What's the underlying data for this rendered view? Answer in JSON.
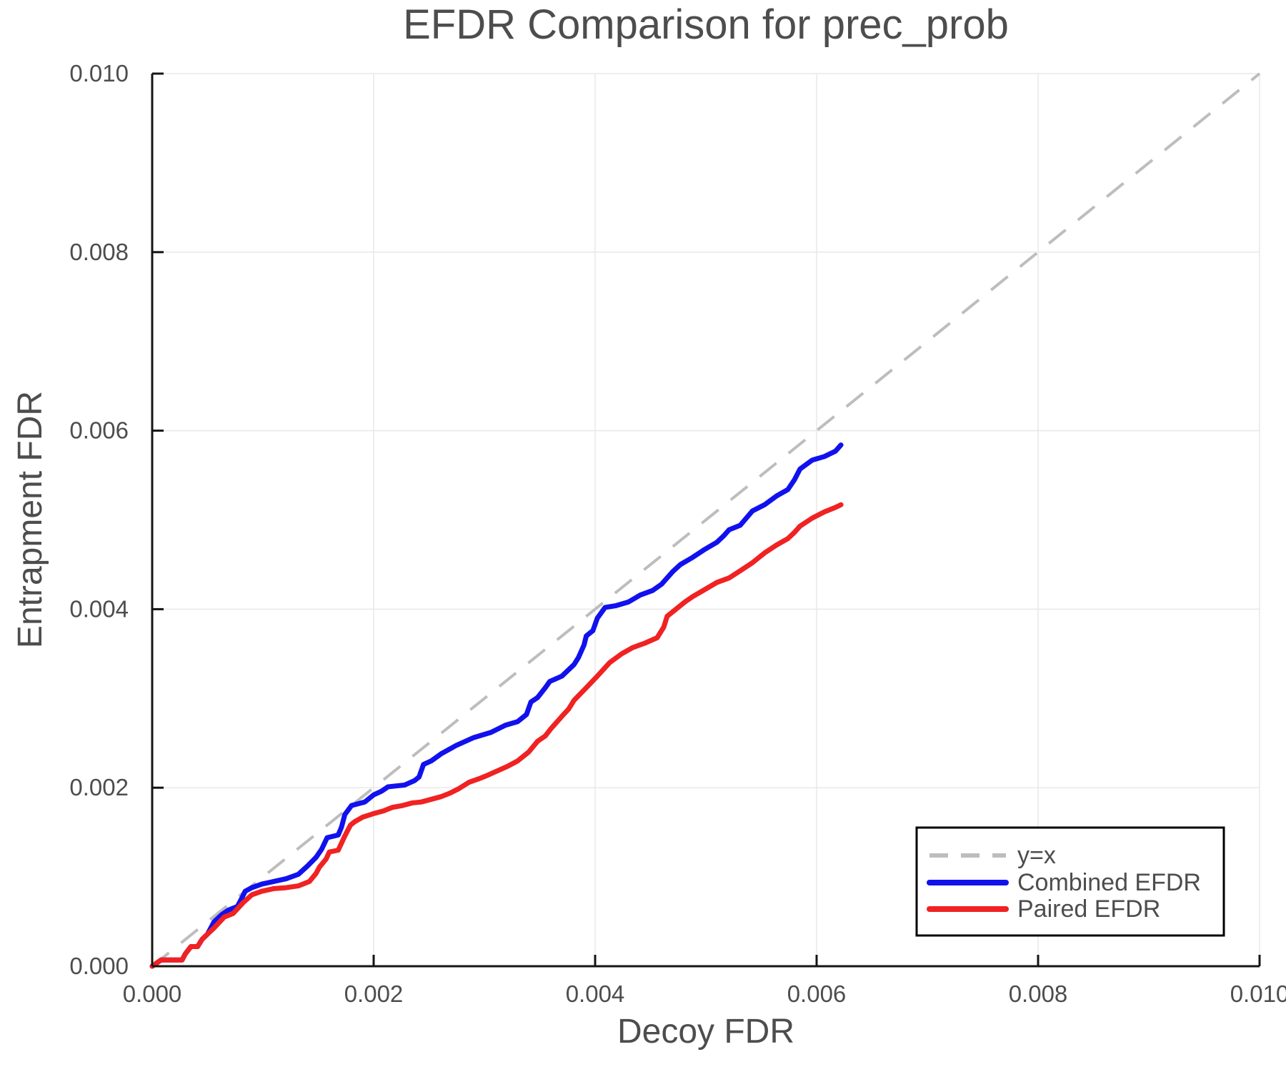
{
  "figure": {
    "title": "EFDR Comparison for prec_prob",
    "xlabel": "Decoy FDR",
    "ylabel": "Entrapment FDR"
  },
  "legend": {
    "position": "lower right",
    "items": [
      {
        "label": "y=x",
        "color": "#bdbdbd",
        "dashed": true
      },
      {
        "label": "Combined EFDR",
        "color": "#1111ee",
        "dashed": false
      },
      {
        "label": "Paired EFDR",
        "color": "#f02222",
        "dashed": false
      }
    ]
  },
  "colors": {
    "text": "#4d4d4d",
    "grid": "#e8e8e8",
    "spine": "#141414",
    "reference": "#bdbdbd",
    "combined": "#1111ee",
    "paired": "#f02222",
    "background": "#ffffff"
  },
  "chart_data": {
    "type": "line",
    "title": "EFDR Comparison for prec_prob",
    "xlabel": "Decoy FDR",
    "ylabel": "Entrapment FDR",
    "xlim": [
      0,
      0.01
    ],
    "ylim": [
      0,
      0.01
    ],
    "x_tick_values": [
      0,
      0.002,
      0.004,
      0.006,
      0.008,
      0.01
    ],
    "x_tick_labels": [
      "0.000",
      "0.002",
      "0.004",
      "0.006",
      "0.008",
      "0.010"
    ],
    "y_tick_values": [
      0,
      0.002,
      0.004,
      0.006,
      0.008,
      0.01
    ],
    "y_tick_labels": [
      "0.000",
      "0.002",
      "0.004",
      "0.006",
      "0.008",
      "0.010"
    ],
    "grid": true,
    "legend_position": "lower right",
    "reference_line": {
      "label": "y=x",
      "from": [
        0,
        0
      ],
      "to": [
        0.01,
        0.01
      ],
      "style": "dashed",
      "color": "#bdbdbd"
    },
    "series": [
      {
        "name": "Combined EFDR",
        "color": "#1111ee",
        "points": [
          [
            0.0,
            0.0
          ],
          [
            8e-05,
            7e-05
          ],
          [
            0.00027,
            7e-05
          ],
          [
            0.0003,
            0.00014
          ],
          [
            0.00035,
            0.00022
          ],
          [
            0.00041,
            0.00022
          ],
          [
            0.00045,
            0.0003
          ],
          [
            0.0005,
            0.00036
          ],
          [
            0.00056,
            0.0005
          ],
          [
            0.00063,
            0.00058
          ],
          [
            0.00069,
            0.00063
          ],
          [
            0.00077,
            0.00067
          ],
          [
            0.0008,
            0.00074
          ],
          [
            0.00084,
            0.00084
          ],
          [
            0.0009,
            0.00088
          ],
          [
            0.00099,
            0.00092
          ],
          [
            0.0011,
            0.00095
          ],
          [
            0.00121,
            0.00098
          ],
          [
            0.00132,
            0.00103
          ],
          [
            0.0014,
            0.00112
          ],
          [
            0.00148,
            0.00122
          ],
          [
            0.00153,
            0.00131
          ],
          [
            0.00158,
            0.00144
          ],
          [
            0.00168,
            0.00147
          ],
          [
            0.00171,
            0.00156
          ],
          [
            0.00174,
            0.0017
          ],
          [
            0.0018,
            0.0018
          ],
          [
            0.00192,
            0.00184
          ],
          [
            0.002,
            0.00192
          ],
          [
            0.00207,
            0.00196
          ],
          [
            0.00213,
            0.00201
          ],
          [
            0.00228,
            0.00203
          ],
          [
            0.00237,
            0.00208
          ],
          [
            0.00241,
            0.00212
          ],
          [
            0.00245,
            0.00226
          ],
          [
            0.00252,
            0.0023
          ],
          [
            0.00261,
            0.00238
          ],
          [
            0.00274,
            0.00247
          ],
          [
            0.0029,
            0.00256
          ],
          [
            0.00306,
            0.00262
          ],
          [
            0.00319,
            0.0027
          ],
          [
            0.0033,
            0.00274
          ],
          [
            0.00338,
            0.00282
          ],
          [
            0.00342,
            0.00296
          ],
          [
            0.00348,
            0.00301
          ],
          [
            0.00355,
            0.00312
          ],
          [
            0.00359,
            0.00319
          ],
          [
            0.0037,
            0.00325
          ],
          [
            0.00381,
            0.00338
          ],
          [
            0.00385,
            0.00346
          ],
          [
            0.0039,
            0.0036
          ],
          [
            0.00392,
            0.0037
          ],
          [
            0.00398,
            0.00376
          ],
          [
            0.00402,
            0.0039
          ],
          [
            0.00409,
            0.00402
          ],
          [
            0.00419,
            0.00404
          ],
          [
            0.0043,
            0.00408
          ],
          [
            0.00441,
            0.00416
          ],
          [
            0.00452,
            0.00421
          ],
          [
            0.0046,
            0.00428
          ],
          [
            0.0047,
            0.00442
          ],
          [
            0.00477,
            0.0045
          ],
          [
            0.00488,
            0.00458
          ],
          [
            0.00499,
            0.00467
          ],
          [
            0.0051,
            0.00475
          ],
          [
            0.00516,
            0.00482
          ],
          [
            0.00521,
            0.00489
          ],
          [
            0.00531,
            0.00494
          ],
          [
            0.00542,
            0.0051
          ],
          [
            0.00553,
            0.00517
          ],
          [
            0.00564,
            0.00527
          ],
          [
            0.00574,
            0.00534
          ],
          [
            0.0058,
            0.00545
          ],
          [
            0.00585,
            0.00557
          ],
          [
            0.00596,
            0.00567
          ],
          [
            0.00607,
            0.00571
          ],
          [
            0.00617,
            0.00577
          ],
          [
            0.00622,
            0.00584
          ]
        ]
      },
      {
        "name": "Paired EFDR",
        "color": "#f02222",
        "points": [
          [
            0.0,
            0.0
          ],
          [
            8e-05,
            7e-05
          ],
          [
            0.00027,
            7e-05
          ],
          [
            0.0003,
            0.00014
          ],
          [
            0.00035,
            0.00022
          ],
          [
            0.00041,
            0.00022
          ],
          [
            0.00045,
            0.0003
          ],
          [
            0.0005,
            0.00036
          ],
          [
            0.00056,
            0.00043
          ],
          [
            0.00065,
            0.00055
          ],
          [
            0.00073,
            0.00059
          ],
          [
            0.00082,
            0.00071
          ],
          [
            0.0009,
            0.0008
          ],
          [
            0.00099,
            0.00084
          ],
          [
            0.0011,
            0.00087
          ],
          [
            0.00121,
            0.00088
          ],
          [
            0.00132,
            0.0009
          ],
          [
            0.00142,
            0.00095
          ],
          [
            0.00148,
            0.00104
          ],
          [
            0.00151,
            0.00111
          ],
          [
            0.00157,
            0.0012
          ],
          [
            0.0016,
            0.00128
          ],
          [
            0.00168,
            0.0013
          ],
          [
            0.00171,
            0.00138
          ],
          [
            0.00174,
            0.00146
          ],
          [
            0.00179,
            0.00158
          ],
          [
            0.00183,
            0.00162
          ],
          [
            0.0019,
            0.00167
          ],
          [
            0.002,
            0.00171
          ],
          [
            0.00209,
            0.00174
          ],
          [
            0.00217,
            0.00178
          ],
          [
            0.00226,
            0.0018
          ],
          [
            0.00235,
            0.00183
          ],
          [
            0.00243,
            0.00184
          ],
          [
            0.00252,
            0.00187
          ],
          [
            0.00261,
            0.0019
          ],
          [
            0.00269,
            0.00194
          ],
          [
            0.00277,
            0.00199
          ],
          [
            0.00286,
            0.00206
          ],
          [
            0.00295,
            0.0021
          ],
          [
            0.00303,
            0.00214
          ],
          [
            0.00312,
            0.00219
          ],
          [
            0.00321,
            0.00224
          ],
          [
            0.0033,
            0.0023
          ],
          [
            0.0034,
            0.0024
          ],
          [
            0.00348,
            0.00252
          ],
          [
            0.00355,
            0.00258
          ],
          [
            0.0036,
            0.00266
          ],
          [
            0.0037,
            0.0028
          ],
          [
            0.00376,
            0.00288
          ],
          [
            0.00381,
            0.00298
          ],
          [
            0.00392,
            0.00312
          ],
          [
            0.00402,
            0.00325
          ],
          [
            0.00413,
            0.0034
          ],
          [
            0.00424,
            0.0035
          ],
          [
            0.00434,
            0.00357
          ],
          [
            0.00445,
            0.00362
          ],
          [
            0.00456,
            0.00368
          ],
          [
            0.00462,
            0.0038
          ],
          [
            0.00465,
            0.00392
          ],
          [
            0.00473,
            0.004
          ],
          [
            0.00481,
            0.00408
          ],
          [
            0.00488,
            0.00414
          ],
          [
            0.00499,
            0.00422
          ],
          [
            0.0051,
            0.0043
          ],
          [
            0.00521,
            0.00435
          ],
          [
            0.00531,
            0.00443
          ],
          [
            0.00542,
            0.00452
          ],
          [
            0.00553,
            0.00463
          ],
          [
            0.00564,
            0.00472
          ],
          [
            0.00574,
            0.00479
          ],
          [
            0.0058,
            0.00486
          ],
          [
            0.00585,
            0.00493
          ],
          [
            0.00596,
            0.00502
          ],
          [
            0.00607,
            0.00509
          ],
          [
            0.00617,
            0.00514
          ],
          [
            0.00622,
            0.00517
          ]
        ]
      }
    ]
  }
}
